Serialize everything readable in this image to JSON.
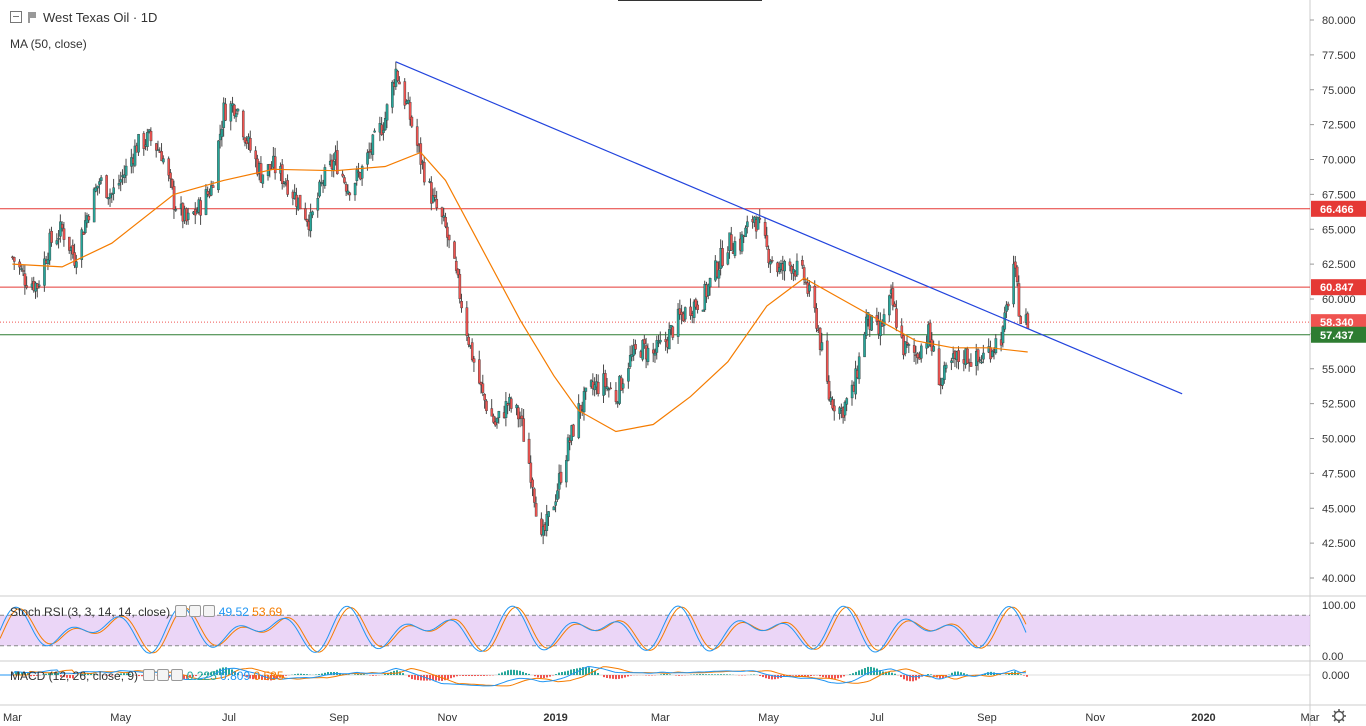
{
  "chart_data": {
    "type": "candlestick",
    "title": "West Texas Oil · 1D",
    "symbol": "West Texas Oil",
    "interval": "1D",
    "indicator_ma": {
      "label": "MA (50, close)",
      "color": "#f57c00"
    },
    "y_ticks": [
      "80.000",
      "77.500",
      "75.000",
      "72.500",
      "70.000",
      "67.500",
      "65.000",
      "62.500",
      "60.000",
      "57.500",
      "55.000",
      "52.500",
      "50.000",
      "47.500",
      "45.000",
      "42.500",
      "40.000"
    ],
    "ylim": [
      38.5,
      81.4
    ],
    "x_ticks": [
      "Mar",
      "May",
      "Jul",
      "Sep",
      "Nov",
      "2019",
      "Mar",
      "May",
      "Jul",
      "Sep",
      "Nov",
      "2020",
      "Mar"
    ],
    "price_path": [
      [
        "2018-03-01",
        63
      ],
      [
        "2018-03-08",
        61.5
      ],
      [
        "2018-03-15",
        61
      ],
      [
        "2018-03-22",
        64
      ],
      [
        "2018-03-29",
        65
      ],
      [
        "2018-04-05",
        63
      ],
      [
        "2018-04-12",
        66
      ],
      [
        "2018-04-19",
        68.5
      ],
      [
        "2018-04-26",
        67.5
      ],
      [
        "2018-05-03",
        69
      ],
      [
        "2018-05-10",
        71
      ],
      [
        "2018-05-17",
        71.5
      ],
      [
        "2018-05-24",
        70.5
      ],
      [
        "2018-05-31",
        67
      ],
      [
        "2018-06-07",
        65.5
      ],
      [
        "2018-06-14",
        66.5
      ],
      [
        "2018-06-21",
        68
      ],
      [
        "2018-06-28",
        73.5
      ],
      [
        "2018-07-05",
        74
      ],
      [
        "2018-07-12",
        71
      ],
      [
        "2018-07-19",
        69
      ],
      [
        "2018-07-26",
        69.5
      ],
      [
        "2018-08-02",
        68.5
      ],
      [
        "2018-08-09",
        67
      ],
      [
        "2018-08-16",
        65.5
      ],
      [
        "2018-08-23",
        68.5
      ],
      [
        "2018-08-30",
        70
      ],
      [
        "2018-09-06",
        68
      ],
      [
        "2018-09-13",
        69
      ],
      [
        "2018-09-20",
        71
      ],
      [
        "2018-09-27",
        73
      ],
      [
        "2018-10-03",
        76.4
      ],
      [
        "2018-10-10",
        73.5
      ],
      [
        "2018-10-17",
        70
      ],
      [
        "2018-10-24",
        67
      ],
      [
        "2018-10-31",
        65
      ],
      [
        "2018-11-07",
        61
      ],
      [
        "2018-11-14",
        56.5
      ],
      [
        "2018-11-21",
        53
      ],
      [
        "2018-11-28",
        51
      ],
      [
        "2018-12-05",
        52.5
      ],
      [
        "2018-12-12",
        51.5
      ],
      [
        "2018-12-19",
        47
      ],
      [
        "2018-12-24",
        42.5
      ],
      [
        "2018-12-31",
        45.5
      ],
      [
        "2019-01-07",
        49
      ],
      [
        "2019-01-14",
        52
      ],
      [
        "2019-01-21",
        53.5
      ],
      [
        "2019-01-28",
        54
      ],
      [
        "2019-02-04",
        53
      ],
      [
        "2019-02-11",
        55.5
      ],
      [
        "2019-02-18",
        56.5
      ],
      [
        "2019-02-25",
        56
      ],
      [
        "2019-03-04",
        57
      ],
      [
        "2019-03-11",
        58.5
      ],
      [
        "2019-03-18",
        59.5
      ],
      [
        "2019-03-25",
        60
      ],
      [
        "2019-04-01",
        62
      ],
      [
        "2019-04-08",
        64
      ],
      [
        "2019-04-15",
        64
      ],
      [
        "2019-04-23",
        66
      ],
      [
        "2019-04-30",
        63.5
      ],
      [
        "2019-05-07",
        62
      ],
      [
        "2019-05-14",
        62.5
      ],
      [
        "2019-05-21",
        61.5
      ],
      [
        "2019-05-28",
        58.5
      ],
      [
        "2019-06-04",
        53
      ],
      [
        "2019-06-11",
        52
      ],
      [
        "2019-06-18",
        53.5
      ],
      [
        "2019-06-25",
        58.5
      ],
      [
        "2019-07-02",
        57.5
      ],
      [
        "2019-07-09",
        60
      ],
      [
        "2019-07-16",
        56.5
      ],
      [
        "2019-07-23",
        56
      ],
      [
        "2019-07-30",
        57.5
      ],
      [
        "2019-08-06",
        54
      ],
      [
        "2019-08-13",
        55.5
      ],
      [
        "2019-08-20",
        56
      ],
      [
        "2019-08-27",
        55.5
      ],
      [
        "2019-09-03",
        56.5
      ],
      [
        "2019-09-10",
        57.5
      ],
      [
        "2019-09-16",
        62.5
      ],
      [
        "2019-09-20",
        58.5
      ],
      [
        "2019-09-24",
        58.34
      ]
    ],
    "ma_path": [
      [
        "2018-03-01",
        62.5
      ],
      [
        "2018-03-29",
        62.3
      ],
      [
        "2018-04-26",
        64
      ],
      [
        "2018-05-31",
        67.5
      ],
      [
        "2018-06-28",
        68.5
      ],
      [
        "2018-07-26",
        69.3
      ],
      [
        "2018-08-30",
        69.2
      ],
      [
        "2018-09-27",
        69.5
      ],
      [
        "2018-10-17",
        70.5
      ],
      [
        "2018-10-31",
        68.5
      ],
      [
        "2018-11-21",
        63.5
      ],
      [
        "2018-12-12",
        58.5
      ],
      [
        "2018-12-31",
        54.5
      ],
      [
        "2019-01-14",
        52
      ],
      [
        "2019-02-04",
        50.5
      ],
      [
        "2019-02-25",
        51
      ],
      [
        "2019-03-18",
        53
      ],
      [
        "2019-04-08",
        55.5
      ],
      [
        "2019-04-30",
        59.5
      ],
      [
        "2019-05-21",
        61.5
      ],
      [
        "2019-06-11",
        60
      ],
      [
        "2019-07-02",
        58.5
      ],
      [
        "2019-07-23",
        57
      ],
      [
        "2019-08-13",
        56.5
      ],
      [
        "2019-09-03",
        56.5
      ],
      [
        "2019-09-24",
        56.2
      ]
    ],
    "trendline": {
      "from": [
        "2018-10-03",
        77.0
      ],
      "to": [
        "2019-12-20",
        53.2
      ],
      "color": "#2244dd"
    },
    "h_levels": [
      {
        "value": 66.466,
        "label": "66.466",
        "color": "#e53935"
      },
      {
        "value": 60.847,
        "label": "60.847",
        "color": "#e53935"
      },
      {
        "value": 58.34,
        "label": "58.340",
        "color": "#ef5350",
        "dotted": true
      },
      {
        "value": 57.437,
        "label": "57.437",
        "color": "#2e7d32"
      }
    ],
    "stoch_rsi": {
      "label": "Stoch RSI (3, 3, 14, 14, close)",
      "k": "49.52",
      "d": "53.69",
      "ticks": [
        "100.00",
        "0.00"
      ],
      "upper": 80,
      "lower": 20,
      "k_color": "#2196f3",
      "d_color": "#f57c00",
      "band_color": "#e6ccf5"
    },
    "macd": {
      "label": "MACD (12, 26, close, 9)",
      "hist": "0.225",
      "macd": "0.809",
      "signal": "0.585",
      "ticks": [
        "0.000"
      ]
    }
  },
  "colors": {
    "up": "#26a69a",
    "down": "#ef5350",
    "wick": "#555555",
    "axis_text": "#333333",
    "grid": "#f0f3fa"
  }
}
